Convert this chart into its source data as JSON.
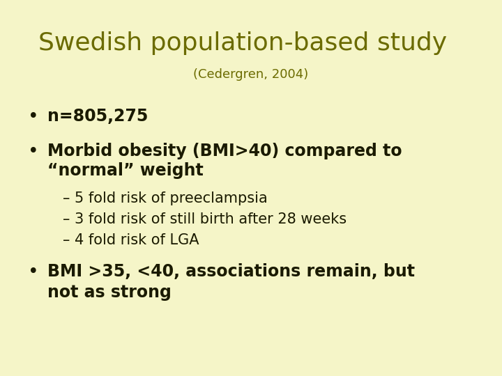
{
  "title": "Swedish population-based study",
  "subtitle": "(Cedergren, 2004)",
  "background_color": "#f5f5c8",
  "title_color": "#6b6b00",
  "subtitle_color": "#6b6b00",
  "text_color": "#1a1a00",
  "title_fontsize": 26,
  "subtitle_fontsize": 13,
  "body_fontsize": 17,
  "sub_fontsize": 15,
  "bullet1": "n=805,275",
  "bullet2_line1": "Morbid obesity (BMI>40) compared to",
  "bullet2_line2": "“normal” weight",
  "sub_bullets": [
    "– 5 fold risk of preeclampsia",
    "– 3 fold risk of still birth after 28 weeks",
    "– 4 fold risk of LGA"
  ],
  "last_bullet_line1": "BMI >35, <40, associations remain, but",
  "last_bullet_line2": "not as strong"
}
